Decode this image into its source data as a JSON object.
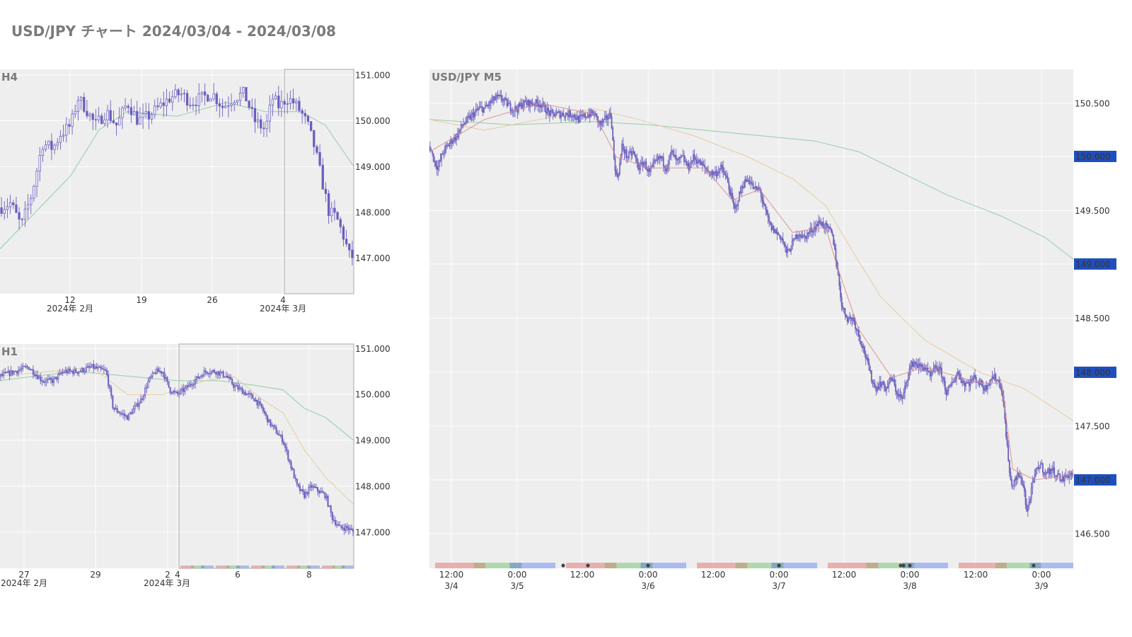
{
  "title": "USD/JPY チャート 2024/03/04 - 2024/03/08",
  "colors": {
    "background": "#eeeeee",
    "grid": "#ffffff",
    "candle": "#6a5fbf",
    "ma_short": "#d98a8a",
    "ma_mid": "#e6c79a",
    "ma_long": "#8cc8a0",
    "highlight_label": "#1f4fbf",
    "session_tokyo": "#e8a3a3",
    "session_overlap1": "#b5a27a",
    "session_london": "#a6d4a0",
    "session_overlap2": "#6f9fb8",
    "session_ny": "#9fb1ef",
    "event_dot": "#444444"
  },
  "chart_data": [
    {
      "id": "h4",
      "type": "candlestick",
      "title": "H4",
      "y_ticks": [
        151.0,
        150.0,
        149.0,
        148.0,
        147.0
      ],
      "y_tick_labels": [
        "151.000",
        "150.000",
        "149.000",
        "148.000",
        "147.000"
      ],
      "ylim": [
        146.25,
        151.1
      ],
      "x_tick_labels": [
        "12",
        "19",
        "26",
        "4"
      ],
      "x_sub_labels": [
        "2024年 2月",
        "2024年 3月"
      ],
      "highlight_range": "2024/03/04 - 2024/03/08",
      "close_path": [
        [
          0,
          148.1
        ],
        [
          3,
          148.2
        ],
        [
          6,
          147.7
        ],
        [
          9,
          148.4
        ],
        [
          12,
          149.5
        ],
        [
          15,
          149.4
        ],
        [
          17,
          149.7
        ],
        [
          20,
          149.9
        ],
        [
          22,
          150.5
        ],
        [
          24,
          150.3
        ],
        [
          27,
          149.9
        ],
        [
          30,
          150.2
        ],
        [
          33,
          149.9
        ],
        [
          36,
          150.4
        ],
        [
          39,
          150.0
        ],
        [
          42,
          150.1
        ],
        [
          45,
          150.3
        ],
        [
          48,
          150.5
        ],
        [
          51,
          150.6
        ],
        [
          54,
          150.4
        ],
        [
          57,
          150.5
        ],
        [
          60,
          150.6
        ],
        [
          63,
          150.3
        ],
        [
          66,
          150.5
        ],
        [
          69,
          150.6
        ],
        [
          72,
          150.0
        ],
        [
          75,
          149.8
        ],
        [
          77,
          150.5
        ],
        [
          79,
          150.3
        ],
        [
          81,
          150.5
        ],
        [
          83,
          150.4
        ],
        [
          85,
          150.2
        ],
        [
          87,
          149.9
        ],
        [
          89,
          149.4
        ],
        [
          91,
          148.7
        ],
        [
          93,
          148.0
        ],
        [
          95,
          147.9
        ],
        [
          97,
          147.5
        ],
        [
          99,
          147.0
        ],
        [
          100,
          147.05
        ]
      ],
      "ma_long_path": [
        [
          0,
          147.2
        ],
        [
          10,
          148.0
        ],
        [
          20,
          148.8
        ],
        [
          28,
          149.8
        ],
        [
          36,
          150.2
        ],
        [
          50,
          150.1
        ],
        [
          64,
          150.4
        ],
        [
          75,
          150.2
        ],
        [
          85,
          150.2
        ],
        [
          92,
          149.9
        ],
        [
          100,
          149.0
        ]
      ]
    },
    {
      "id": "h1",
      "type": "candlestick",
      "title": "H1",
      "y_ticks": [
        151.0,
        150.0,
        149.0,
        148.0,
        147.0
      ],
      "y_tick_labels": [
        "151.000",
        "150.000",
        "149.000",
        "148.000",
        "147.000"
      ],
      "ylim": [
        146.25,
        151.1
      ],
      "x_tick_labels": [
        "27",
        "29",
        "2",
        "4",
        "6",
        "8"
      ],
      "x_sub_labels": [
        "2024年 2月",
        "2024年 3月"
      ],
      "highlight_range": "2024/03/04 - 2024/03/08",
      "close_path": [
        [
          0,
          150.4
        ],
        [
          4,
          150.5
        ],
        [
          8,
          150.6
        ],
        [
          12,
          150.3
        ],
        [
          15,
          150.3
        ],
        [
          18,
          150.5
        ],
        [
          22,
          150.5
        ],
        [
          26,
          150.6
        ],
        [
          30,
          150.5
        ],
        [
          32,
          149.7
        ],
        [
          34,
          149.6
        ],
        [
          36,
          149.5
        ],
        [
          38,
          149.7
        ],
        [
          40,
          149.9
        ],
        [
          42,
          150.3
        ],
        [
          44,
          150.5
        ],
        [
          46,
          150.5
        ],
        [
          48,
          150.1
        ],
        [
          50,
          150.0
        ],
        [
          52,
          150.1
        ],
        [
          55,
          150.3
        ],
        [
          58,
          150.5
        ],
        [
          61,
          150.5
        ],
        [
          64,
          150.4
        ],
        [
          66,
          150.2
        ],
        [
          68,
          150.1
        ],
        [
          70,
          150.0
        ],
        [
          72,
          149.9
        ],
        [
          74,
          149.7
        ],
        [
          76,
          149.4
        ],
        [
          78,
          149.2
        ],
        [
          80,
          149.0
        ],
        [
          82,
          148.5
        ],
        [
          84,
          148.0
        ],
        [
          86,
          147.8
        ],
        [
          88,
          148.0
        ],
        [
          90,
          147.9
        ],
        [
          92,
          147.8
        ],
        [
          94,
          147.3
        ],
        [
          96,
          147.1
        ],
        [
          98,
          147.1
        ],
        [
          100,
          147.0
        ]
      ],
      "ma_long_path": [
        [
          0,
          150.3
        ],
        [
          10,
          150.4
        ],
        [
          22,
          150.5
        ],
        [
          36,
          150.4
        ],
        [
          50,
          150.3
        ],
        [
          62,
          150.3
        ],
        [
          72,
          150.2
        ],
        [
          80,
          150.1
        ],
        [
          86,
          149.7
        ],
        [
          92,
          149.5
        ],
        [
          100,
          149.0
        ]
      ],
      "ma_mid_path": [
        [
          0,
          150.4
        ],
        [
          14,
          150.5
        ],
        [
          26,
          150.6
        ],
        [
          36,
          150.0
        ],
        [
          46,
          150.0
        ],
        [
          58,
          150.3
        ],
        [
          66,
          150.4
        ],
        [
          74,
          149.9
        ],
        [
          80,
          149.6
        ],
        [
          86,
          148.8
        ],
        [
          92,
          148.2
        ],
        [
          100,
          147.6
        ]
      ]
    },
    {
      "id": "m5",
      "type": "candlestick",
      "title": "USD/JPY M5",
      "y_ticks": [
        150.5,
        150.0,
        149.5,
        149.0,
        148.5,
        148.0,
        147.5,
        147.0,
        146.5
      ],
      "y_tick_labels": [
        "150.500",
        "150.000",
        "149.500",
        "149.000",
        "148.500",
        "148.000",
        "147.500",
        "147.000",
        "146.500"
      ],
      "highlighted_y_labels": [
        "150.000",
        "149.000",
        "148.000",
        "147.000"
      ],
      "ylim": [
        146.4,
        150.8
      ],
      "x_tick_labels": [
        [
          "12:00",
          "3/4"
        ],
        [
          "0:00",
          "3/5"
        ],
        [
          "12:00",
          ""
        ],
        [
          "0:00",
          "3/6"
        ],
        [
          "12:00",
          ""
        ],
        [
          "0:00",
          "3/7"
        ],
        [
          "12:00",
          ""
        ],
        [
          "0:00",
          "3/8"
        ],
        [
          "12:00",
          ""
        ],
        [
          "0:00",
          "3/9"
        ]
      ],
      "close_path": [
        [
          0,
          150.1
        ],
        [
          1,
          149.95
        ],
        [
          1.5,
          149.9
        ],
        [
          2.5,
          150.05
        ],
        [
          4,
          150.15
        ],
        [
          5,
          150.2
        ],
        [
          6,
          150.3
        ],
        [
          7,
          150.35
        ],
        [
          8,
          150.4
        ],
        [
          9,
          150.45
        ],
        [
          10,
          150.45
        ],
        [
          11,
          150.5
        ],
        [
          12,
          150.55
        ],
        [
          13,
          150.55
        ],
        [
          14,
          150.5
        ],
        [
          15,
          150.45
        ],
        [
          16,
          150.45
        ],
        [
          17,
          150.5
        ],
        [
          18,
          150.5
        ],
        [
          19,
          150.5
        ],
        [
          20,
          150.5
        ],
        [
          21,
          150.45
        ],
        [
          22,
          150.4
        ],
        [
          23,
          150.4
        ],
        [
          24,
          150.4
        ],
        [
          25,
          150.4
        ],
        [
          26,
          150.4
        ],
        [
          27,
          150.35
        ],
        [
          29,
          150.4
        ],
        [
          30,
          150.4
        ],
        [
          31,
          150.3
        ],
        [
          32,
          150.35
        ],
        [
          33,
          150.4
        ],
        [
          33.5,
          150.0
        ],
        [
          34,
          149.8
        ],
        [
          34.5,
          149.9
        ],
        [
          35,
          150.1
        ],
        [
          36,
          150.0
        ],
        [
          37,
          150.05
        ],
        [
          38,
          149.9
        ],
        [
          39,
          149.95
        ],
        [
          40,
          149.85
        ],
        [
          41,
          149.95
        ],
        [
          42,
          150.0
        ],
        [
          43,
          149.9
        ],
        [
          44,
          150.05
        ],
        [
          45,
          149.95
        ],
        [
          46,
          150.0
        ],
        [
          47,
          149.9
        ],
        [
          48,
          150.0
        ],
        [
          49,
          149.95
        ],
        [
          50,
          149.9
        ],
        [
          51,
          149.85
        ],
        [
          52,
          149.85
        ],
        [
          53,
          149.9
        ],
        [
          54,
          149.8
        ],
        [
          54.5,
          149.7
        ],
        [
          55,
          149.6
        ],
        [
          55.5,
          149.5
        ],
        [
          56,
          149.6
        ],
        [
          57,
          149.75
        ],
        [
          58,
          149.8
        ],
        [
          59,
          149.7
        ],
        [
          60,
          149.7
        ],
        [
          61,
          149.5
        ],
        [
          62,
          149.35
        ],
        [
          63,
          149.3
        ],
        [
          64,
          149.25
        ],
        [
          65,
          149.1
        ],
        [
          66,
          149.2
        ],
        [
          67,
          149.3
        ],
        [
          68,
          149.25
        ],
        [
          69,
          149.3
        ],
        [
          70,
          149.35
        ],
        [
          71,
          149.4
        ],
        [
          72,
          149.35
        ],
        [
          73,
          149.3
        ],
        [
          73.5,
          149.2
        ],
        [
          74,
          149.0
        ],
        [
          74.5,
          148.8
        ],
        [
          75,
          148.6
        ],
        [
          76,
          148.5
        ],
        [
          77,
          148.5
        ],
        [
          78,
          148.35
        ],
        [
          79,
          148.2
        ],
        [
          80,
          148.0
        ],
        [
          81,
          147.85
        ],
        [
          82,
          147.9
        ],
        [
          83,
          147.85
        ],
        [
          84,
          147.95
        ],
        [
          85,
          147.8
        ],
        [
          86,
          147.75
        ],
        [
          87,
          148.0
        ],
        [
          88,
          148.1
        ],
        [
          89,
          148.05
        ],
        [
          90,
          148.05
        ],
        [
          91,
          147.95
        ],
        [
          92,
          148.05
        ],
        [
          93,
          148.0
        ],
        [
          94,
          147.8
        ],
        [
          95,
          147.9
        ],
        [
          96,
          148.0
        ],
        [
          97,
          147.9
        ],
        [
          98,
          147.9
        ],
        [
          99,
          147.95
        ],
        [
          100,
          147.9
        ],
        [
          101,
          147.85
        ],
        [
          102,
          147.95
        ],
        [
          103,
          147.95
        ],
        [
          104,
          147.85
        ],
        [
          104.5,
          147.6
        ],
        [
          105,
          147.3
        ],
        [
          105.5,
          147.0
        ],
        [
          106,
          146.95
        ],
        [
          107,
          147.05
        ],
        [
          108,
          146.95
        ],
        [
          108.5,
          146.7
        ],
        [
          109,
          146.8
        ],
        [
          110,
          147.05
        ],
        [
          111,
          147.15
        ],
        [
          112,
          147.05
        ],
        [
          113,
          147.1
        ],
        [
          114,
          147.05
        ],
        [
          115,
          147.0
        ],
        [
          116,
          147.05
        ],
        [
          117,
          147.05
        ]
      ],
      "ma_long_path": [
        [
          0,
          150.35
        ],
        [
          15,
          150.3
        ],
        [
          30,
          150.33
        ],
        [
          40,
          150.3
        ],
        [
          50,
          150.25
        ],
        [
          60,
          150.2
        ],
        [
          70,
          150.15
        ],
        [
          78,
          150.05
        ],
        [
          86,
          149.85
        ],
        [
          94,
          149.65
        ],
        [
          104,
          149.45
        ],
        [
          112,
          149.25
        ],
        [
          117,
          149.05
        ]
      ],
      "ma_mid_path": [
        [
          0,
          150.35
        ],
        [
          10,
          150.25
        ],
        [
          20,
          150.35
        ],
        [
          30,
          150.45
        ],
        [
          38,
          150.35
        ],
        [
          48,
          150.2
        ],
        [
          58,
          150.0
        ],
        [
          66,
          149.8
        ],
        [
          72,
          149.55
        ],
        [
          76,
          149.2
        ],
        [
          82,
          148.7
        ],
        [
          90,
          148.3
        ],
        [
          100,
          148.0
        ],
        [
          108,
          147.85
        ],
        [
          117,
          147.55
        ]
      ],
      "ma_short_path": [
        [
          0,
          150.05
        ],
        [
          10,
          150.35
        ],
        [
          20,
          150.5
        ],
        [
          30,
          150.4
        ],
        [
          34,
          150.0
        ],
        [
          40,
          149.9
        ],
        [
          50,
          149.9
        ],
        [
          55,
          149.6
        ],
        [
          60,
          149.7
        ],
        [
          66,
          149.3
        ],
        [
          72,
          149.35
        ],
        [
          74,
          149.0
        ],
        [
          78,
          148.4
        ],
        [
          84,
          147.95
        ],
        [
          90,
          148.05
        ],
        [
          100,
          147.9
        ],
        [
          104,
          147.9
        ],
        [
          106,
          147.1
        ],
        [
          110,
          147.0
        ],
        [
          117,
          147.05
        ]
      ]
    }
  ]
}
